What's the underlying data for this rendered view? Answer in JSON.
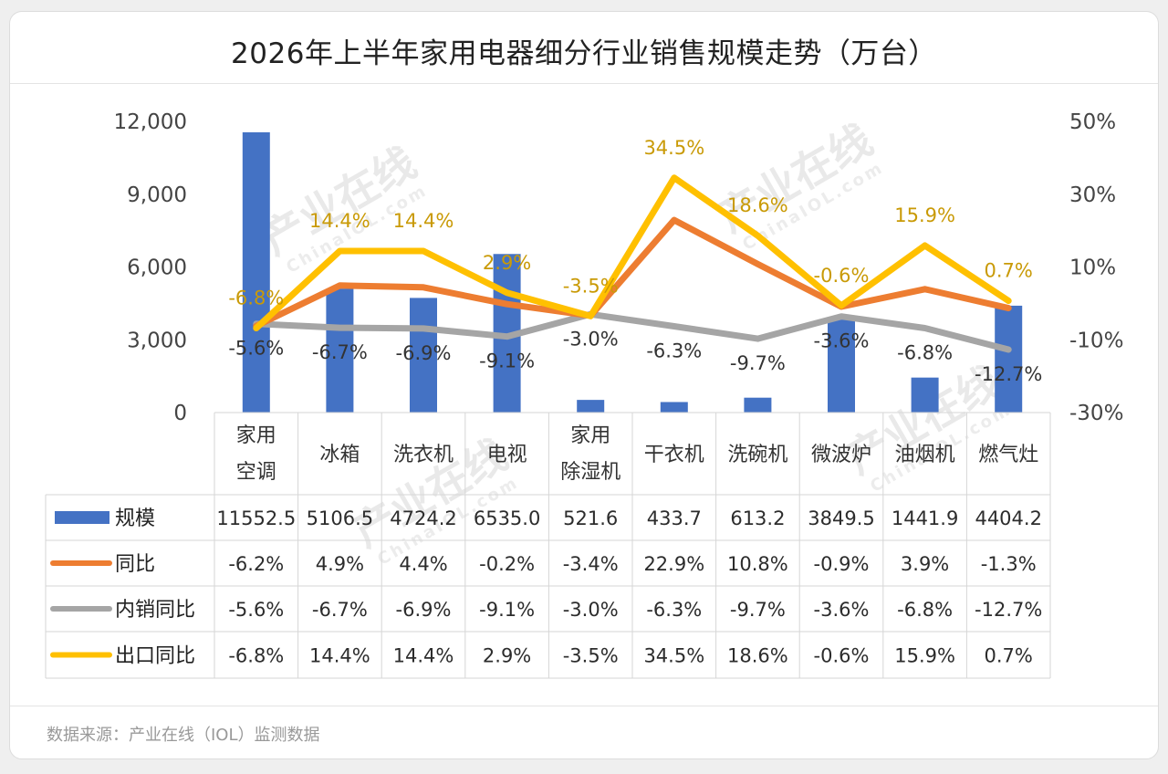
{
  "title": "2026年上半年家用电器细分行业销售规模走势（万台）",
  "source": "数据来源：产业在线（IOL）监测数据",
  "watermark": {
    "text": "产业在线",
    "sub": "ChinaIOL.com"
  },
  "colors": {
    "bar": "#4472c4",
    "yoy": "#ed7d31",
    "domestic": "#a5a5a5",
    "export": "#ffc000",
    "export_label": "#c99a06",
    "domestic_label": "#333333"
  },
  "chart_data": {
    "type": "bar",
    "title": "2026年上半年家用电器细分行业销售规模走势（万台）",
    "categories": [
      [
        "家用",
        "空调"
      ],
      [
        "冰箱"
      ],
      [
        "洗衣机"
      ],
      [
        "电视"
      ],
      [
        "家用",
        "除湿机"
      ],
      [
        "干衣机"
      ],
      [
        "洗碗机"
      ],
      [
        "微波炉"
      ],
      [
        "油烟机"
      ],
      [
        "燃气灶"
      ]
    ],
    "y_left": {
      "ticks": [
        "0",
        "3,000",
        "6,000",
        "9,000",
        "12,000"
      ],
      "range": [
        0,
        12000
      ]
    },
    "y_right": {
      "ticks": [
        "-30%",
        "-10%",
        "10%",
        "30%",
        "50%"
      ],
      "range": [
        -30,
        50
      ]
    },
    "grid": false,
    "legend": "data-table",
    "series": [
      {
        "name": "规模",
        "kind": "bar",
        "axis": "left",
        "values": [
          11552.5,
          5106.5,
          4724.2,
          6535.0,
          521.6,
          433.7,
          613.2,
          3849.5,
          1441.9,
          4404.2
        ],
        "table": [
          "11552.5",
          "5106.5",
          "4724.2",
          "6535.0",
          "521.6",
          "433.7",
          "613.2",
          "3849.5",
          "1441.9",
          "4404.2"
        ]
      },
      {
        "name": "同比",
        "kind": "line",
        "axis": "right",
        "values": [
          -6.2,
          4.9,
          4.4,
          -0.2,
          -3.4,
          22.9,
          10.8,
          -0.9,
          3.9,
          -1.3
        ],
        "table": [
          "-6.2%",
          "4.9%",
          "4.4%",
          "-0.2%",
          "-3.4%",
          "22.9%",
          "10.8%",
          "-0.9%",
          "3.9%",
          "-1.3%"
        ]
      },
      {
        "name": "内销同比",
        "kind": "line",
        "axis": "right",
        "values": [
          -5.6,
          -6.7,
          -6.9,
          -9.1,
          -3.0,
          -6.3,
          -9.7,
          -3.6,
          -6.8,
          -12.7
        ],
        "table": [
          "-5.6%",
          "-6.7%",
          "-6.9%",
          "-9.1%",
          "-3.0%",
          "-6.3%",
          "-9.7%",
          "-3.6%",
          "-6.8%",
          "-12.7%"
        ]
      },
      {
        "name": "出口同比",
        "kind": "line",
        "axis": "right",
        "values": [
          -6.8,
          14.4,
          14.4,
          2.9,
          -3.5,
          34.5,
          18.6,
          -0.6,
          15.9,
          0.7
        ],
        "table": [
          "-6.8%",
          "14.4%",
          "14.4%",
          "2.9%",
          "-3.5%",
          "34.5%",
          "18.6%",
          "-0.6%",
          "15.9%",
          "0.7%"
        ]
      }
    ]
  }
}
